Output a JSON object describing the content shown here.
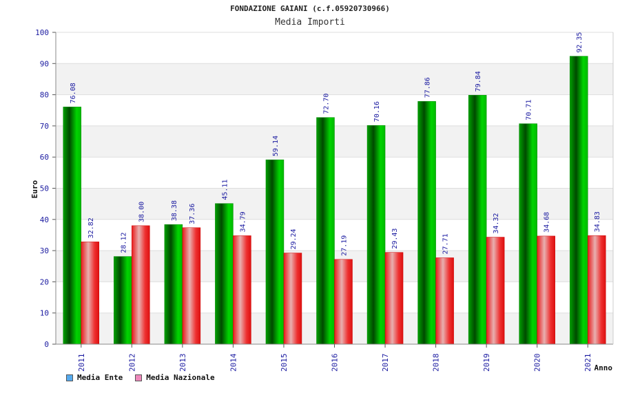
{
  "chart_data": {
    "type": "bar",
    "title": "FONDAZIONE GAIANI (c.f.05920730966)",
    "subtitle": "Media Importi",
    "ylabel": "Euro",
    "xlabel": "Anno",
    "ylim": [
      0,
      100
    ],
    "y_ticks": [
      0,
      10,
      20,
      30,
      40,
      50,
      60,
      70,
      80,
      90,
      100
    ],
    "categories": [
      "2011",
      "2012",
      "2013",
      "2014",
      "2015",
      "2016",
      "2017",
      "2018",
      "2019",
      "2020",
      "2021"
    ],
    "series": [
      {
        "name": "Media Ente",
        "color": "#00bb00",
        "legend_color": "#55aaee",
        "values": [
          76.08,
          28.12,
          38.38,
          45.11,
          59.14,
          72.7,
          70.16,
          77.86,
          79.84,
          70.71,
          92.35
        ],
        "labels": [
          "76.08",
          "28.12",
          "38.38",
          "45.11",
          "59.14",
          "72.70",
          "70.16",
          "77.86",
          "79.84",
          "70.71",
          "92.35"
        ]
      },
      {
        "name": "Media Nazionale",
        "color": "#ee2222",
        "legend_color": "#ee88bb",
        "values": [
          32.82,
          38.0,
          37.36,
          34.79,
          29.24,
          27.19,
          29.43,
          27.71,
          34.32,
          34.68,
          34.83
        ],
        "labels": [
          "32.82",
          "38.00",
          "37.36",
          "34.79",
          "29.24",
          "27.19",
          "29.43",
          "27.71",
          "34.32",
          "34.68",
          "34.83"
        ]
      }
    ],
    "grid": true,
    "legend_position": "bottom-left"
  }
}
